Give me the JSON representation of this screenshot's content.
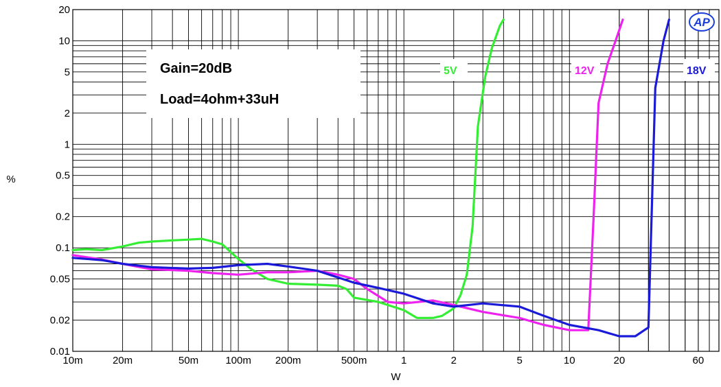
{
  "chart_data": {
    "type": "line",
    "xscale": "log",
    "yscale": "log",
    "xlabel": "W",
    "ylabel": "%",
    "xlim": [
      0.01,
      80
    ],
    "ylim": [
      0.01,
      20
    ],
    "grid": true,
    "x_ticks": [
      {
        "v": 0.01,
        "label": "10m"
      },
      {
        "v": 0.02,
        "label": "20m"
      },
      {
        "v": 0.05,
        "label": "50m"
      },
      {
        "v": 0.1,
        "label": "100m"
      },
      {
        "v": 0.2,
        "label": "200m"
      },
      {
        "v": 0.5,
        "label": "500m"
      },
      {
        "v": 1,
        "label": "1"
      },
      {
        "v": 2,
        "label": "2"
      },
      {
        "v": 5,
        "label": "5"
      },
      {
        "v": 10,
        "label": "10"
      },
      {
        "v": 20,
        "label": "20"
      },
      {
        "v": 60,
        "label": "60"
      }
    ],
    "y_ticks": [
      {
        "v": 0.01,
        "label": "0.01"
      },
      {
        "v": 0.02,
        "label": "0.02"
      },
      {
        "v": 0.05,
        "label": "0.05"
      },
      {
        "v": 0.1,
        "label": "0.1"
      },
      {
        "v": 0.2,
        "label": "0.2"
      },
      {
        "v": 0.5,
        "label": "0.5"
      },
      {
        "v": 1,
        "label": "1"
      },
      {
        "v": 2,
        "label": "2"
      },
      {
        "v": 5,
        "label": "5"
      },
      {
        "v": 10,
        "label": "10"
      },
      {
        "v": 20,
        "label": "20"
      }
    ],
    "annotations": [
      "Gain=20dB",
      "Load=4ohm+33uH"
    ],
    "logo": "AP",
    "series": [
      {
        "name": "5V",
        "color": "#33ee33",
        "points": [
          [
            0.01,
            0.095
          ],
          [
            0.012,
            0.097
          ],
          [
            0.015,
            0.095
          ],
          [
            0.02,
            0.103
          ],
          [
            0.025,
            0.112
          ],
          [
            0.03,
            0.115
          ],
          [
            0.04,
            0.118
          ],
          [
            0.05,
            0.12
          ],
          [
            0.06,
            0.122
          ],
          [
            0.07,
            0.115
          ],
          [
            0.08,
            0.108
          ],
          [
            0.1,
            0.078
          ],
          [
            0.12,
            0.062
          ],
          [
            0.15,
            0.05
          ],
          [
            0.2,
            0.045
          ],
          [
            0.3,
            0.044
          ],
          [
            0.4,
            0.043
          ],
          [
            0.45,
            0.04
          ],
          [
            0.5,
            0.033
          ],
          [
            0.7,
            0.03
          ],
          [
            1,
            0.025
          ],
          [
            1.2,
            0.021
          ],
          [
            1.5,
            0.021
          ],
          [
            1.7,
            0.022
          ],
          [
            2,
            0.026
          ],
          [
            2.2,
            0.035
          ],
          [
            2.4,
            0.055
          ],
          [
            2.6,
            0.16
          ],
          [
            2.8,
            1.5
          ],
          [
            3.1,
            4.5
          ],
          [
            3.4,
            8.5
          ],
          [
            3.8,
            14
          ],
          [
            4,
            16
          ]
        ]
      },
      {
        "name": "12V",
        "color": "#ee22ee",
        "points": [
          [
            0.01,
            0.085
          ],
          [
            0.015,
            0.077
          ],
          [
            0.02,
            0.07
          ],
          [
            0.03,
            0.062
          ],
          [
            0.05,
            0.06
          ],
          [
            0.07,
            0.057
          ],
          [
            0.1,
            0.055
          ],
          [
            0.15,
            0.058
          ],
          [
            0.2,
            0.058
          ],
          [
            0.3,
            0.06
          ],
          [
            0.4,
            0.055
          ],
          [
            0.5,
            0.05
          ],
          [
            0.6,
            0.04
          ],
          [
            0.8,
            0.03
          ],
          [
            1,
            0.029
          ],
          [
            1.5,
            0.031
          ],
          [
            2,
            0.028
          ],
          [
            3,
            0.024
          ],
          [
            5,
            0.021
          ],
          [
            7,
            0.018
          ],
          [
            10,
            0.016
          ],
          [
            13,
            0.016
          ],
          [
            14,
            0.2
          ],
          [
            15,
            2.5
          ],
          [
            17,
            6
          ],
          [
            19,
            10
          ],
          [
            21,
            16
          ]
        ]
      },
      {
        "name": "18V",
        "color": "#1a1ad8",
        "points": [
          [
            0.01,
            0.08
          ],
          [
            0.015,
            0.076
          ],
          [
            0.02,
            0.07
          ],
          [
            0.03,
            0.065
          ],
          [
            0.05,
            0.063
          ],
          [
            0.07,
            0.064
          ],
          [
            0.1,
            0.068
          ],
          [
            0.15,
            0.07
          ],
          [
            0.2,
            0.066
          ],
          [
            0.3,
            0.06
          ],
          [
            0.5,
            0.046
          ],
          [
            0.7,
            0.041
          ],
          [
            1,
            0.036
          ],
          [
            1.5,
            0.029
          ],
          [
            2,
            0.027
          ],
          [
            3,
            0.029
          ],
          [
            5,
            0.027
          ],
          [
            7,
            0.022
          ],
          [
            10,
            0.018
          ],
          [
            15,
            0.016
          ],
          [
            20,
            0.014
          ],
          [
            25,
            0.014
          ],
          [
            30,
            0.017
          ],
          [
            33,
            3.5
          ],
          [
            37,
            10
          ],
          [
            40,
            16
          ]
        ]
      }
    ]
  }
}
